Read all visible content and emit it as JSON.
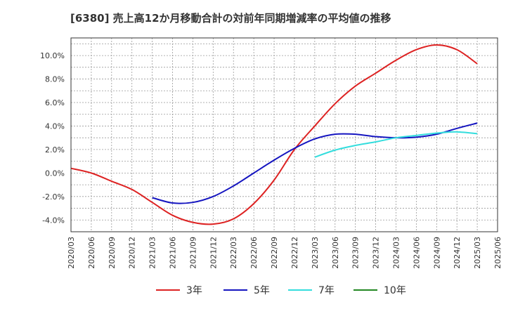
{
  "chart_data": {
    "type": "line",
    "title": "[6380]  売上高12か月移動合計の対前年同期増減率の平均値の推移",
    "xlabel": "",
    "ylabel": "",
    "ylim": [
      -5.0,
      11.5
    ],
    "y_ticks": [
      -4.0,
      -2.0,
      0.0,
      2.0,
      4.0,
      6.0,
      8.0,
      10.0
    ],
    "y_tick_labels": [
      "-4.0%",
      "-2.0%",
      "0.0%",
      "2.0%",
      "4.0%",
      "6.0%",
      "8.0%",
      "10.0%"
    ],
    "x_tick_labels": [
      "2020/03",
      "2020/06",
      "2020/09",
      "2020/12",
      "2021/03",
      "2021/06",
      "2021/09",
      "2021/12",
      "2022/03",
      "2022/06",
      "2022/09",
      "2022/12",
      "2023/03",
      "2023/06",
      "2023/09",
      "2023/12",
      "2024/03",
      "2024/06",
      "2024/09",
      "2024/12",
      "2025/03",
      "2025/06"
    ],
    "grid": true,
    "legend_position": "bottom",
    "series": [
      {
        "name": "3年",
        "color": "#dd2222",
        "x": [
          "2020/03",
          "2020/06",
          "2020/09",
          "2020/12",
          "2021/03",
          "2021/06",
          "2021/09",
          "2021/12",
          "2022/03",
          "2022/06",
          "2022/09",
          "2022/12",
          "2023/03",
          "2023/06",
          "2023/09",
          "2023/12",
          "2024/03",
          "2024/06",
          "2024/09",
          "2024/12",
          "2025/03"
        ],
        "values": [
          0.4,
          0.0,
          -0.7,
          -1.4,
          -2.5,
          -3.6,
          -4.2,
          -4.35,
          -3.9,
          -2.6,
          -0.6,
          2.0,
          4.0,
          5.9,
          7.4,
          8.5,
          9.6,
          10.5,
          10.9,
          10.5,
          9.3
        ]
      },
      {
        "name": "5年",
        "color": "#1515c0",
        "x": [
          "2021/03",
          "2021/06",
          "2021/09",
          "2021/12",
          "2022/03",
          "2022/06",
          "2022/09",
          "2022/12",
          "2023/03",
          "2023/06",
          "2023/09",
          "2023/12",
          "2024/03",
          "2024/06",
          "2024/09",
          "2024/12",
          "2025/03"
        ],
        "values": [
          -2.1,
          -2.55,
          -2.5,
          -2.0,
          -1.1,
          0.0,
          1.1,
          2.1,
          2.9,
          3.3,
          3.3,
          3.1,
          3.0,
          3.05,
          3.3,
          3.8,
          4.25
        ]
      },
      {
        "name": "7年",
        "color": "#33dddd",
        "x": [
          "2023/03",
          "2023/06",
          "2023/09",
          "2023/12",
          "2024/03",
          "2024/06",
          "2024/09",
          "2024/12",
          "2025/03"
        ],
        "values": [
          1.35,
          1.95,
          2.35,
          2.65,
          3.0,
          3.2,
          3.4,
          3.5,
          3.35
        ]
      },
      {
        "name": "10年",
        "color": "#228822",
        "x": [],
        "values": []
      }
    ]
  }
}
